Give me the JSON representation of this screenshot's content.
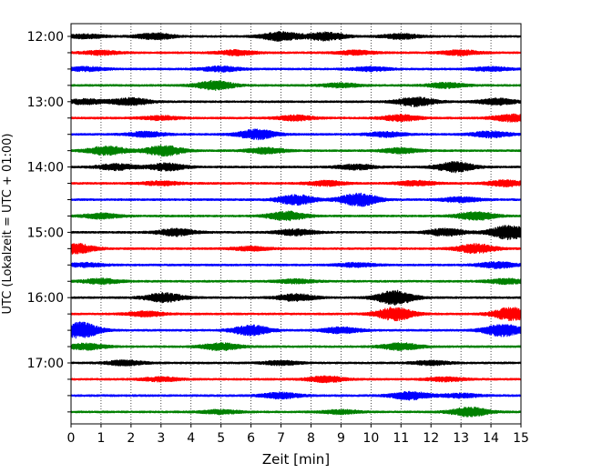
{
  "chart_data": {
    "type": "line",
    "title": "",
    "xlabel": "Zeit  [min]",
    "ylabel": "UTC (Lokalzeit = UTC + 01:00)",
    "xlim": [
      0,
      15
    ],
    "x_ticks": [
      0,
      1,
      2,
      3,
      4,
      5,
      6,
      7,
      8,
      9,
      10,
      11,
      12,
      13,
      14,
      15
    ],
    "x_tick_labels": [
      "0",
      "1",
      "2",
      "3",
      "4",
      "5",
      "6",
      "7",
      "8",
      "9",
      "10",
      "11",
      "12",
      "13",
      "14",
      "15"
    ],
    "y_tick_labels": [
      "12:00",
      "13:00",
      "14:00",
      "15:00",
      "16:00",
      "17:00"
    ],
    "y_ticks_start_utc": [
      "12:00",
      "12:15",
      "12:30",
      "12:45",
      "13:00",
      "13:15",
      "13:30",
      "13:45",
      "14:00",
      "14:15",
      "14:30",
      "14:45",
      "15:00",
      "15:15",
      "15:30",
      "15:45",
      "16:00",
      "16:15",
      "16:30",
      "16:45",
      "17:00",
      "17:15",
      "17:30",
      "17:45"
    ],
    "grid": "vertical-dotted",
    "trace_colors": [
      "#000000",
      "#ff0000",
      "#0000ff",
      "#008000"
    ],
    "traces": [
      {
        "start": "12:00",
        "color": "#000000",
        "bursts": [
          [
            0.5,
            0.4
          ],
          [
            2.8,
            0.6
          ],
          [
            7.0,
            0.9
          ],
          [
            8.5,
            0.8
          ],
          [
            11.0,
            0.5
          ]
        ]
      },
      {
        "start": "12:15",
        "color": "#ff0000",
        "bursts": [
          [
            1.0,
            0.4
          ],
          [
            5.5,
            0.5
          ],
          [
            9.5,
            0.4
          ],
          [
            13.0,
            0.5
          ]
        ]
      },
      {
        "start": "12:30",
        "color": "#0000ff",
        "bursts": [
          [
            0.5,
            0.4
          ],
          [
            5.0,
            0.5
          ],
          [
            10.0,
            0.4
          ],
          [
            14.0,
            0.4
          ]
        ]
      },
      {
        "start": "12:45",
        "color": "#008000",
        "bursts": [
          [
            4.8,
            0.9
          ],
          [
            9.0,
            0.4
          ],
          [
            12.5,
            0.5
          ]
        ]
      },
      {
        "start": "13:00",
        "color": "#000000",
        "bursts": [
          [
            0.5,
            0.5
          ],
          [
            2.0,
            0.7
          ],
          [
            11.5,
            0.9
          ],
          [
            14.2,
            0.6
          ]
        ]
      },
      {
        "start": "13:15",
        "color": "#ff0000",
        "bursts": [
          [
            3.0,
            0.4
          ],
          [
            7.5,
            0.5
          ],
          [
            11.0,
            0.6
          ],
          [
            14.7,
            0.7
          ]
        ]
      },
      {
        "start": "13:30",
        "color": "#0000ff",
        "bursts": [
          [
            2.5,
            0.5
          ],
          [
            6.2,
            1.0
          ],
          [
            10.5,
            0.5
          ],
          [
            14.0,
            0.6
          ]
        ]
      },
      {
        "start": "13:45",
        "color": "#008000",
        "bursts": [
          [
            1.2,
            0.9
          ],
          [
            3.1,
            1.0
          ],
          [
            6.5,
            0.6
          ],
          [
            11.0,
            0.5
          ]
        ]
      },
      {
        "start": "14:00",
        "color": "#000000",
        "bursts": [
          [
            1.5,
            0.6
          ],
          [
            3.2,
            0.7
          ],
          [
            9.5,
            0.5
          ],
          [
            12.8,
            1.0
          ]
        ]
      },
      {
        "start": "14:15",
        "color": "#ff0000",
        "bursts": [
          [
            3.0,
            0.4
          ],
          [
            8.5,
            0.5
          ],
          [
            11.5,
            0.5
          ],
          [
            14.5,
            0.6
          ]
        ]
      },
      {
        "start": "14:30",
        "color": "#0000ff",
        "bursts": [
          [
            7.5,
            1.0
          ],
          [
            9.6,
            1.3
          ],
          [
            13.0,
            0.5
          ]
        ]
      },
      {
        "start": "14:45",
        "color": "#008000",
        "bursts": [
          [
            1.0,
            0.5
          ],
          [
            7.2,
            0.9
          ],
          [
            13.5,
            0.8
          ]
        ]
      },
      {
        "start": "15:00",
        "color": "#000000",
        "bursts": [
          [
            3.5,
            0.7
          ],
          [
            7.5,
            0.6
          ],
          [
            12.5,
            0.7
          ],
          [
            14.6,
            1.4
          ]
        ]
      },
      {
        "start": "15:15",
        "color": "#ff0000",
        "bursts": [
          [
            0.15,
            1.0
          ],
          [
            6.0,
            0.4
          ],
          [
            13.5,
            0.9
          ]
        ]
      },
      {
        "start": "15:30",
        "color": "#0000ff",
        "bursts": [
          [
            0.5,
            0.4
          ],
          [
            9.5,
            0.4
          ],
          [
            14.2,
            0.6
          ]
        ]
      },
      {
        "start": "15:45",
        "color": "#008000",
        "bursts": [
          [
            1.0,
            0.5
          ],
          [
            7.5,
            0.4
          ],
          [
            14.5,
            0.5
          ]
        ]
      },
      {
        "start": "16:00",
        "color": "#000000",
        "bursts": [
          [
            3.1,
            0.9
          ],
          [
            7.5,
            0.7
          ],
          [
            10.8,
            1.4
          ]
        ]
      },
      {
        "start": "16:15",
        "color": "#ff0000",
        "bursts": [
          [
            2.5,
            0.5
          ],
          [
            10.8,
            1.3
          ],
          [
            14.7,
            1.3
          ]
        ]
      },
      {
        "start": "16:30",
        "color": "#0000ff",
        "bursts": [
          [
            0.3,
            1.6
          ],
          [
            6.0,
            1.0
          ],
          [
            9.0,
            0.6
          ],
          [
            14.4,
            1.2
          ]
        ]
      },
      {
        "start": "16:45",
        "color": "#008000",
        "bursts": [
          [
            0.5,
            0.6
          ],
          [
            5.0,
            0.7
          ],
          [
            11.0,
            0.7
          ]
        ]
      },
      {
        "start": "17:00",
        "color": "#000000",
        "bursts": [
          [
            1.8,
            0.5
          ],
          [
            7.0,
            0.4
          ],
          [
            12.0,
            0.4
          ]
        ]
      },
      {
        "start": "17:15",
        "color": "#ff0000",
        "bursts": [
          [
            3.0,
            0.4
          ],
          [
            8.5,
            0.6
          ],
          [
            12.5,
            0.4
          ]
        ]
      },
      {
        "start": "17:30",
        "color": "#0000ff",
        "bursts": [
          [
            7.0,
            0.6
          ],
          [
            11.3,
            0.8
          ],
          [
            13.0,
            0.4
          ]
        ]
      },
      {
        "start": "17:45",
        "color": "#008000",
        "bursts": [
          [
            5.0,
            0.4
          ],
          [
            9.0,
            0.4
          ],
          [
            13.3,
            0.9
          ]
        ]
      }
    ]
  }
}
